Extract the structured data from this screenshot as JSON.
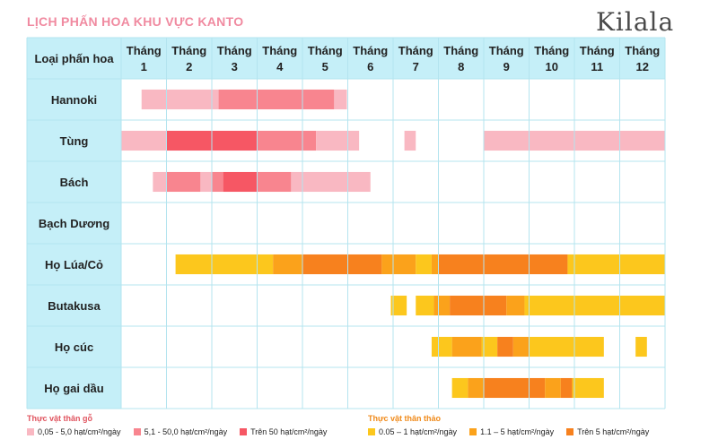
{
  "header": {
    "title": "LỊCH PHẤN HOA KHU VỰC KANTO",
    "brand": "Kilala"
  },
  "colors": {
    "wood_low": "#f9b8c2",
    "wood_mid": "#f8858f",
    "wood_high": "#f65764",
    "herb_low": "#fcc71d",
    "herb_mid": "#fba21b",
    "herb_high": "#f7811e",
    "header_bg": "#c5eff8",
    "grid": "#b4e4ef"
  },
  "legend": {
    "wood_title": "Thực vật thân gỗ",
    "wood_items": [
      "0,05 - 5,0 hạt/cm²/ngày",
      "5,1 - 50,0 hạt/cm²/ngày",
      "Trên 50 hạt/cm²/ngày"
    ],
    "herb_title": "Thực vật thân thảo",
    "herb_items": [
      "0.05 – 1 hạt/cm²/ngày",
      "1.1 – 5 hạt/cm²/ngày",
      "Trên 5 hạt/cm²/ngày"
    ]
  },
  "chart_data": {
    "type": "table",
    "corner_label": "Loại phấn hoa",
    "month_word": "Tháng",
    "months": [
      "1",
      "2",
      "3",
      "4",
      "5",
      "6",
      "7",
      "8",
      "9",
      "10",
      "11",
      "12"
    ],
    "x_unit": "month (1.0 = start of January, 13.0 = end of December)",
    "level_legend": {
      "1": "low",
      "2": "medium",
      "3": "high"
    },
    "rows": [
      {
        "name": "Hannoki",
        "group": "wood",
        "segments": [
          {
            "start": 1.45,
            "end": 3.15,
            "level": 1
          },
          {
            "start": 3.15,
            "end": 5.7,
            "level": 2
          },
          {
            "start": 5.7,
            "end": 5.98,
            "level": 1
          }
        ]
      },
      {
        "name": "Tùng",
        "group": "wood",
        "segments": [
          {
            "start": 1.0,
            "end": 2.0,
            "level": 1
          },
          {
            "start": 2.0,
            "end": 4.0,
            "level": 3
          },
          {
            "start": 4.0,
            "end": 5.3,
            "level": 2
          },
          {
            "start": 5.3,
            "end": 6.25,
            "level": 1
          },
          {
            "start": 7.25,
            "end": 7.5,
            "level": 1
          },
          {
            "start": 9.0,
            "end": 13.0,
            "level": 1
          }
        ]
      },
      {
        "name": "Bách",
        "group": "wood",
        "segments": [
          {
            "start": 1.7,
            "end": 2.0,
            "level": 1
          },
          {
            "start": 2.0,
            "end": 2.75,
            "level": 2
          },
          {
            "start": 2.75,
            "end": 3.0,
            "level": 1
          },
          {
            "start": 3.0,
            "end": 3.25,
            "level": 2
          },
          {
            "start": 3.25,
            "end": 4.0,
            "level": 3
          },
          {
            "start": 4.0,
            "end": 4.75,
            "level": 2
          },
          {
            "start": 4.75,
            "end": 6.5,
            "level": 1
          }
        ]
      },
      {
        "name": "Bạch Dương",
        "group": "wood",
        "segments": []
      },
      {
        "name": "Họ Lúa/Cỏ",
        "group": "herb",
        "segments": [
          {
            "start": 2.2,
            "end": 4.35,
            "level": 1
          },
          {
            "start": 4.35,
            "end": 5.0,
            "level": 2
          },
          {
            "start": 5.0,
            "end": 6.75,
            "level": 3
          },
          {
            "start": 6.75,
            "end": 7.5,
            "level": 2
          },
          {
            "start": 7.5,
            "end": 7.85,
            "level": 1
          },
          {
            "start": 7.85,
            "end": 8.0,
            "level": 2
          },
          {
            "start": 8.0,
            "end": 10.85,
            "level": 3
          },
          {
            "start": 10.85,
            "end": 13.0,
            "level": 1
          }
        ]
      },
      {
        "name": "Butakusa",
        "group": "herb",
        "segments": [
          {
            "start": 6.95,
            "end": 7.3,
            "level": 1
          },
          {
            "start": 7.5,
            "end": 7.9,
            "level": 1
          },
          {
            "start": 7.9,
            "end": 8.25,
            "level": 2
          },
          {
            "start": 8.25,
            "end": 9.5,
            "level": 3
          },
          {
            "start": 9.5,
            "end": 9.9,
            "level": 2
          },
          {
            "start": 9.9,
            "end": 13.0,
            "level": 1
          }
        ]
      },
      {
        "name": "Họ cúc",
        "group": "herb",
        "segments": [
          {
            "start": 7.85,
            "end": 8.3,
            "level": 1
          },
          {
            "start": 8.3,
            "end": 8.95,
            "level": 2
          },
          {
            "start": 8.95,
            "end": 9.3,
            "level": 1
          },
          {
            "start": 9.3,
            "end": 9.65,
            "level": 3
          },
          {
            "start": 9.65,
            "end": 10.0,
            "level": 2
          },
          {
            "start": 10.0,
            "end": 11.65,
            "level": 1
          },
          {
            "start": 12.35,
            "end": 12.6,
            "level": 1
          }
        ]
      },
      {
        "name": "Họ gai dầu",
        "group": "herb",
        "segments": [
          {
            "start": 8.3,
            "end": 8.65,
            "level": 1
          },
          {
            "start": 8.65,
            "end": 9.0,
            "level": 2
          },
          {
            "start": 9.0,
            "end": 10.35,
            "level": 3
          },
          {
            "start": 10.35,
            "end": 10.7,
            "level": 2
          },
          {
            "start": 10.7,
            "end": 10.95,
            "level": 3
          },
          {
            "start": 10.95,
            "end": 11.65,
            "level": 1
          }
        ]
      }
    ]
  }
}
